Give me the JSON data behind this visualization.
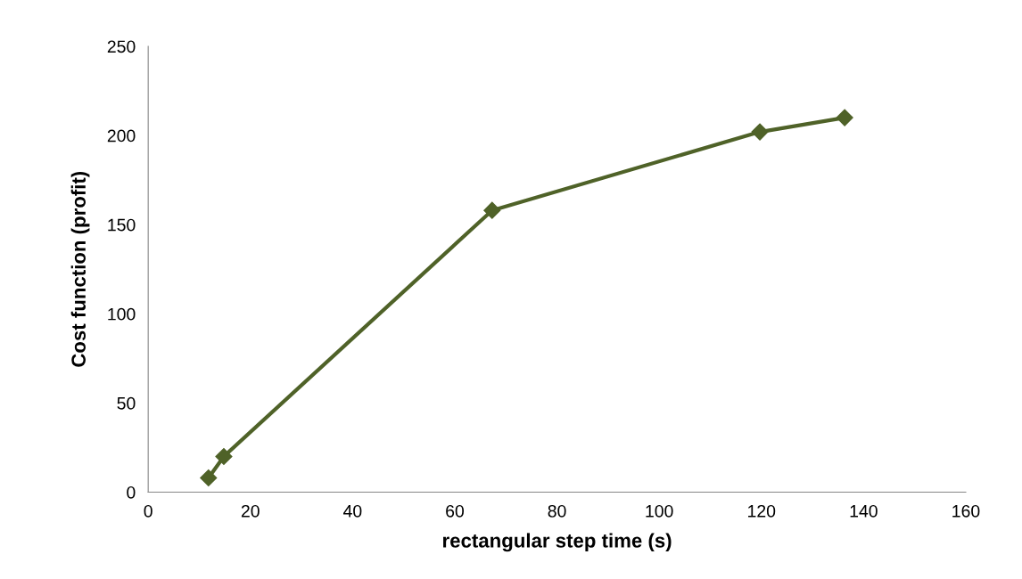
{
  "chart_data": {
    "type": "line",
    "xlabel": "rectangular step time (s)",
    "ylabel": "Cost function (profit)",
    "x": [
      11.8,
      14.8,
      67.3,
      119.7,
      136.3
    ],
    "series": [
      {
        "color": "#4f6228",
        "values": [
          8,
          20,
          158,
          202,
          210
        ]
      }
    ],
    "xlim": [
      0,
      160
    ],
    "xticks": [
      0,
      20,
      40,
      60,
      80,
      100,
      120,
      140,
      160
    ],
    "ylim": [
      0,
      250
    ],
    "yticks": [
      0,
      50,
      100,
      150,
      200,
      250
    ],
    "marker": "diamond",
    "line_style": "solid",
    "grid": false,
    "legend": false
  }
}
